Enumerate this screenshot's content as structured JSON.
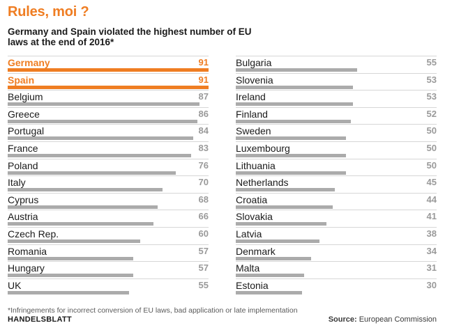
{
  "chart_data": {
    "type": "bar",
    "title": "Rules, moi ?",
    "subtitle": "Germany and Spain violated the highest number of EU laws at the end of 2016*",
    "xlim": [
      0,
      91
    ],
    "highlight_color": "#ef7d22",
    "bar_color": "#ababab",
    "categories": [
      "Germany",
      "Spain",
      "Belgium",
      "Greece",
      "Portugal",
      "France",
      "Poland",
      "Italy",
      "Cyprus",
      "Austria",
      "Czech Rep.",
      "Romania",
      "Hungary",
      "UK",
      "Bulgaria",
      "Slovenia",
      "Ireland",
      "Finland",
      "Sweden",
      "Luxembourg",
      "Lithuania",
      "Netherlands",
      "Croatia",
      "Slovakia",
      "Latvia",
      "Denmark",
      "Malta",
      "Estonia"
    ],
    "values": [
      91,
      91,
      87,
      86,
      84,
      83,
      76,
      70,
      68,
      66,
      60,
      57,
      57,
      55,
      55,
      53,
      53,
      52,
      50,
      50,
      50,
      45,
      44,
      41,
      38,
      34,
      31,
      30
    ],
    "highlighted": [
      "Germany",
      "Spain"
    ]
  },
  "footnote": "*Infringements for incorrect conversion of EU laws, bad application or late implementation",
  "brand": "HANDELSBLATT",
  "source_label": "Source:",
  "source_text": "European Commission"
}
